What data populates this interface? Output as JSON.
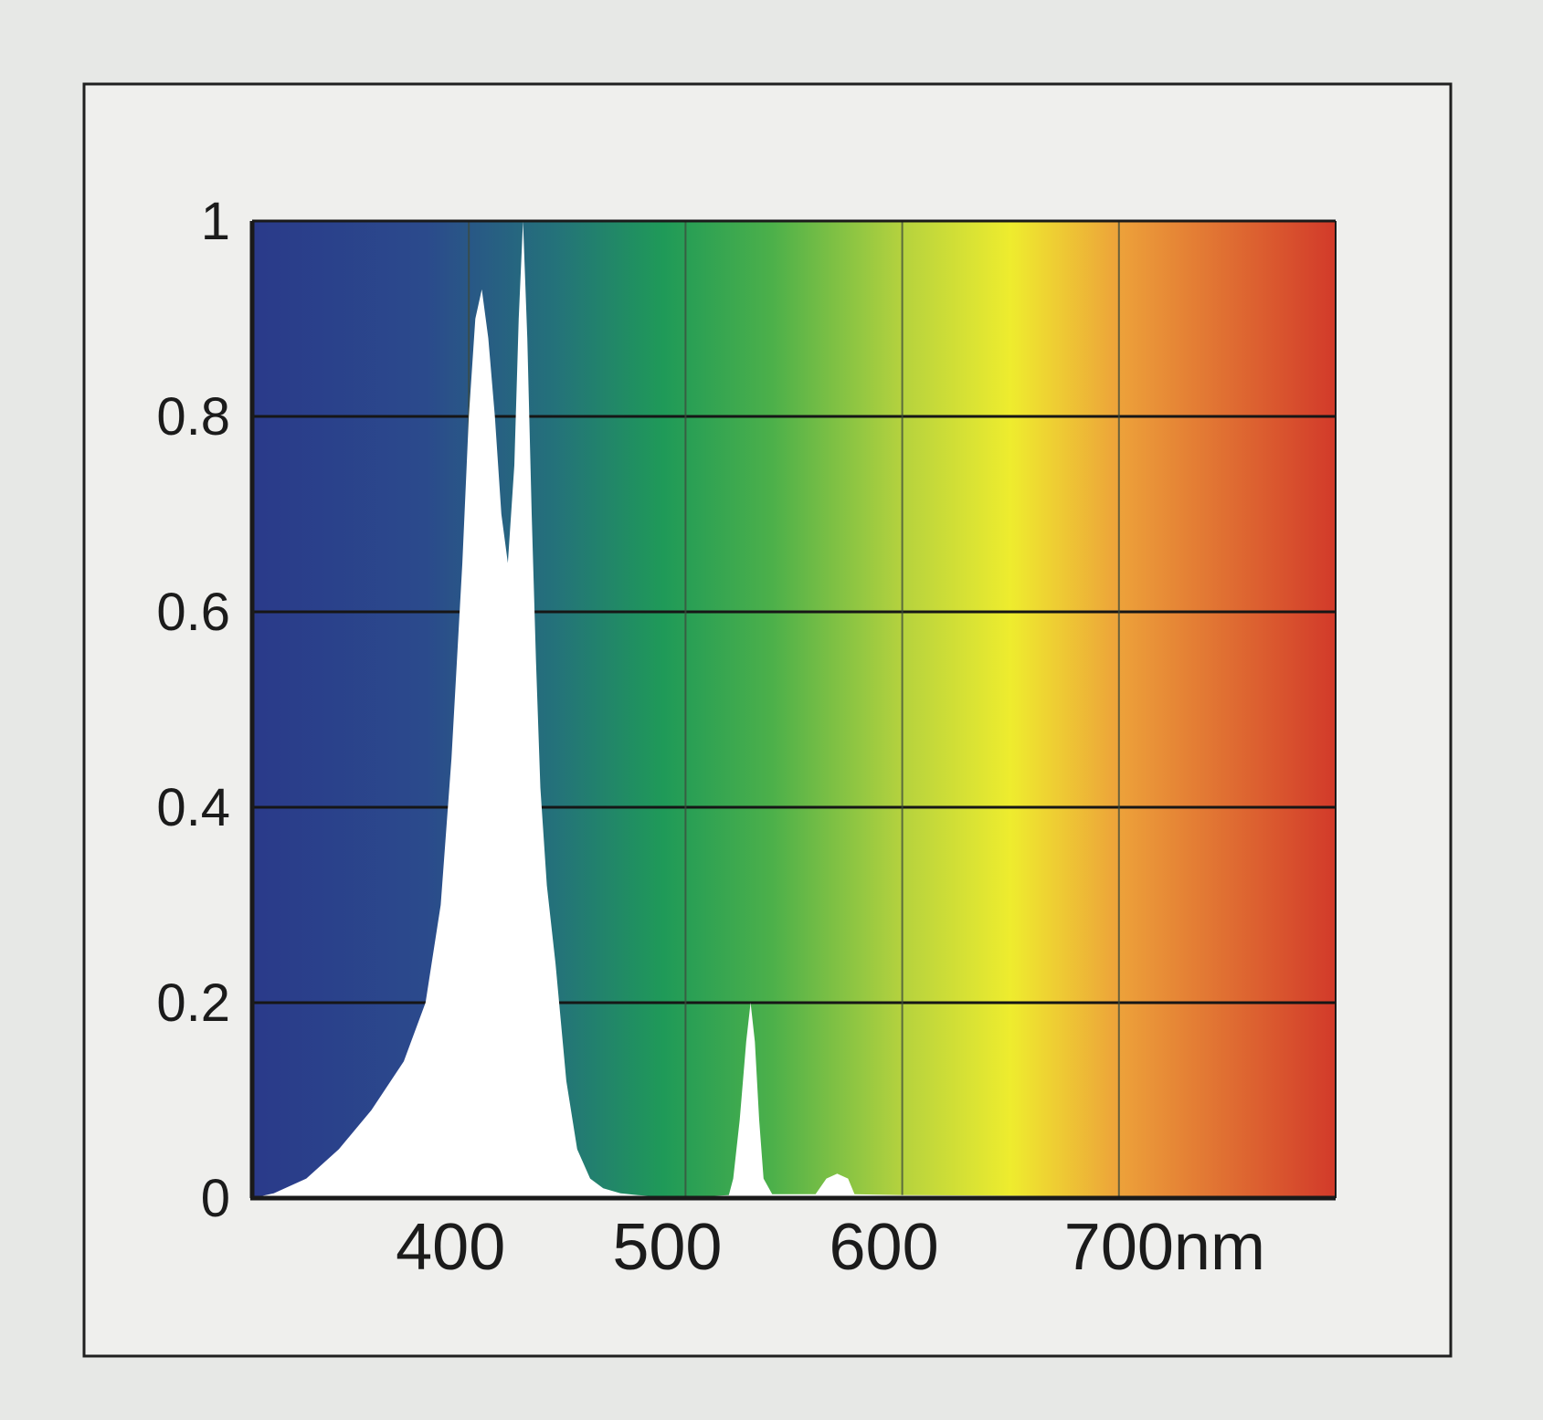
{
  "chart_data": {
    "type": "area",
    "title": "",
    "xlabel": "",
    "ylabel": "",
    "x_unit": "nm",
    "xlim": [
      300,
      800
    ],
    "ylim": [
      0,
      1
    ],
    "grid": true,
    "x_ticks": [
      {
        "value": 400,
        "label": "400"
      },
      {
        "value": 500,
        "label": "500"
      },
      {
        "value": 600,
        "label": "600"
      },
      {
        "value": 700,
        "label": "700nm"
      }
    ],
    "y_ticks": [
      {
        "value": 0,
        "label": "0"
      },
      {
        "value": 0.2,
        "label": "0.2"
      },
      {
        "value": 0.4,
        "label": "0.4"
      },
      {
        "value": 0.6,
        "label": "0.6"
      },
      {
        "value": 0.8,
        "label": "0.8"
      },
      {
        "value": 1,
        "label": "1"
      }
    ],
    "series": [
      {
        "x": [
          300,
          310,
          325,
          340,
          355,
          370,
          380,
          387,
          392,
          397,
          400,
          403,
          406,
          409,
          412,
          415,
          418,
          421,
          423,
          425,
          427,
          429,
          431,
          433,
          436,
          440,
          445,
          450,
          456,
          462,
          470,
          478,
          485,
          500,
          510,
          520,
          522,
          525,
          528,
          530,
          532,
          534,
          536,
          540,
          560,
          565,
          570,
          575,
          578,
          600,
          700,
          800
        ],
        "values": [
          0,
          0.005,
          0.02,
          0.05,
          0.09,
          0.14,
          0.2,
          0.3,
          0.45,
          0.65,
          0.8,
          0.9,
          0.93,
          0.88,
          0.8,
          0.7,
          0.65,
          0.75,
          0.9,
          1.0,
          0.88,
          0.7,
          0.55,
          0.42,
          0.32,
          0.24,
          0.12,
          0.05,
          0.02,
          0.01,
          0.005,
          0.003,
          0.002,
          0.002,
          0.002,
          0.003,
          0.02,
          0.08,
          0.16,
          0.2,
          0.16,
          0.08,
          0.02,
          0.004,
          0.004,
          0.02,
          0.025,
          0.02,
          0.004,
          0.003,
          0.002,
          0.002
        ]
      }
    ],
    "background_gradient": [
      {
        "nm": 300,
        "color": "#2a3a8a"
      },
      {
        "nm": 380,
        "color": "#2b4a8c"
      },
      {
        "nm": 440,
        "color": "#24727a"
      },
      {
        "nm": 490,
        "color": "#1f9a58"
      },
      {
        "nm": 540,
        "color": "#4cb04a"
      },
      {
        "nm": 600,
        "color": "#b5d23e"
      },
      {
        "nm": 650,
        "color": "#eeec2e"
      },
      {
        "nm": 700,
        "color": "#eda23a"
      },
      {
        "nm": 800,
        "color": "#d23a2a"
      }
    ],
    "colors": {
      "page_background": "#e7e8e6",
      "frame_background": "#efefed",
      "curve_fill": "#ffffff",
      "grid_line": "#161616",
      "text": "#1b1b1b"
    }
  }
}
